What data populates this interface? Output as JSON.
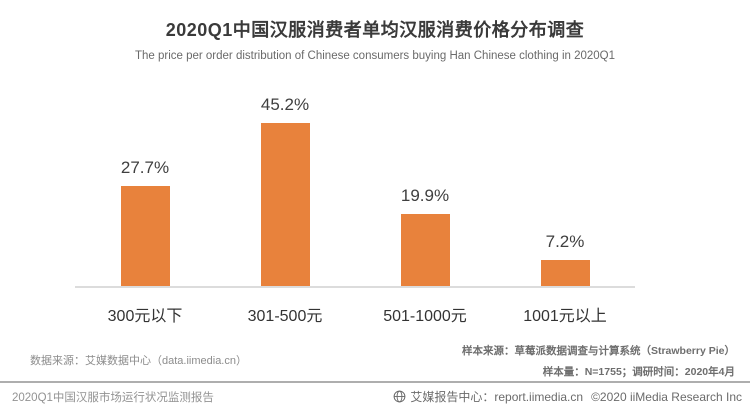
{
  "header": {
    "title": "2020Q1中国汉服消费者单均汉服消费价格分布调查",
    "subtitle": "The price per order distribution of Chinese consumers buying Han Chinese clothing in 2020Q1"
  },
  "chart_data": {
    "type": "bar",
    "title": "2020Q1中国汉服消费者单均汉服消费价格分布调查",
    "subtitle": "The price per order distribution of Chinese consumers buying Han Chinese clothing in 2020Q1",
    "categories": [
      "300元以下",
      "301-500元",
      "501-1000元",
      "1001元以上"
    ],
    "values": [
      27.7,
      45.2,
      19.9,
      7.2
    ],
    "value_labels": [
      "27.7%",
      "45.2%",
      "19.9%",
      "7.2%"
    ],
    "xlabel": "",
    "ylabel": "",
    "ylim": [
      0,
      50
    ],
    "grid": false,
    "legend": "none",
    "bar_color": "#E8823C"
  },
  "sources": {
    "data_source": "数据来源：艾媒数据中心（data.iimedia.cn）",
    "sample_source": "样本来源：草莓派数据调查与计算系统（Strawberry Pie）",
    "sample_size": "样本量：N=1755；调研时间：2020年4月"
  },
  "footer": {
    "report_title": "2020Q1中国汉服市场运行状况监测报告",
    "report_center": "艾媒报告中心：report.iimedia.cn",
    "copyright": "©2020  iiMedia Research Inc"
  },
  "colors": {
    "bar": "#E8823C",
    "title_text": "#3a3a3a",
    "subtitle_text": "#6a6a6a",
    "axis_line": "#dcdcdc",
    "footer_text": "#6b6b6b"
  }
}
